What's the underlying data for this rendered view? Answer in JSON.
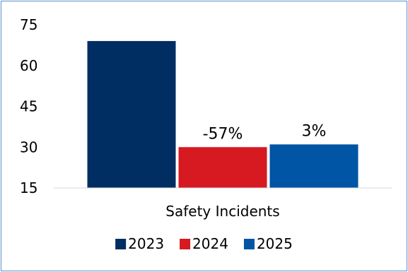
{
  "chart_data": {
    "type": "bar",
    "categories": [
      "Safety Incidents"
    ],
    "series": [
      {
        "name": "2023",
        "values": [
          69
        ],
        "color": "#002d62",
        "label": ""
      },
      {
        "name": "2024",
        "values": [
          30
        ],
        "color": "#d71921",
        "label": "-57%"
      },
      {
        "name": "2025",
        "values": [
          31
        ],
        "color": "#0055a5",
        "label": "3%"
      }
    ],
    "yticks": [
      15,
      30,
      45,
      60,
      75
    ],
    "ylim": [
      15,
      75
    ],
    "grid": false,
    "legend": "bottom",
    "title": "",
    "xlabel": "",
    "ylabel": ""
  }
}
